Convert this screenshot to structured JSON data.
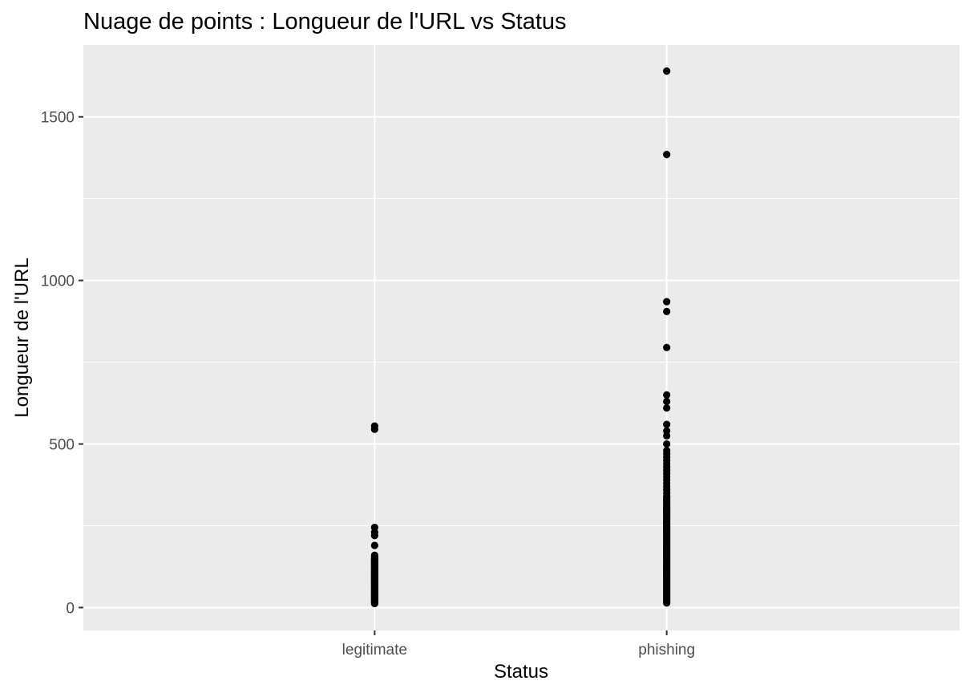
{
  "chart_data": {
    "type": "scatter",
    "title": "Nuage de points : Longueur de l'URL vs Status",
    "xlabel": "Status",
    "ylabel": "Longueur de l'URL",
    "categories": [
      "legitimate",
      "phishing"
    ],
    "ylim": [
      -70,
      1720
    ],
    "y_ticks": [
      0,
      500,
      1000,
      1500
    ],
    "y_tick_labels": [
      "0",
      "500",
      "1000",
      "1500"
    ],
    "grid": true,
    "background": "#ebebeb",
    "point_color": "#000000",
    "series": [
      {
        "category": "legitimate",
        "values": [
          12,
          15,
          18,
          20,
          22,
          25,
          28,
          30,
          33,
          35,
          38,
          40,
          43,
          45,
          48,
          50,
          53,
          55,
          58,
          60,
          63,
          65,
          68,
          70,
          73,
          75,
          78,
          80,
          83,
          85,
          88,
          90,
          93,
          95,
          98,
          100,
          103,
          105,
          108,
          110,
          113,
          115,
          118,
          120,
          123,
          125,
          128,
          130,
          133,
          135,
          138,
          140,
          143,
          145,
          148,
          150,
          155,
          160,
          190,
          220,
          230,
          245,
          545,
          555
        ]
      },
      {
        "category": "phishing",
        "values": [
          14,
          18,
          22,
          26,
          30,
          34,
          38,
          42,
          46,
          50,
          54,
          58,
          62,
          66,
          70,
          74,
          78,
          82,
          86,
          90,
          94,
          98,
          102,
          106,
          110,
          114,
          118,
          122,
          126,
          130,
          134,
          138,
          142,
          146,
          150,
          154,
          158,
          162,
          166,
          170,
          174,
          178,
          182,
          186,
          190,
          194,
          198,
          202,
          206,
          210,
          214,
          218,
          222,
          226,
          230,
          234,
          238,
          242,
          246,
          250,
          254,
          258,
          262,
          266,
          270,
          274,
          278,
          282,
          286,
          290,
          294,
          298,
          302,
          306,
          310,
          315,
          320,
          325,
          330,
          335,
          340,
          350,
          360,
          370,
          380,
          390,
          400,
          410,
          420,
          430,
          440,
          450,
          460,
          470,
          480,
          500,
          525,
          540,
          560,
          610,
          630,
          650,
          795,
          905,
          935,
          1385,
          1640
        ]
      }
    ]
  }
}
